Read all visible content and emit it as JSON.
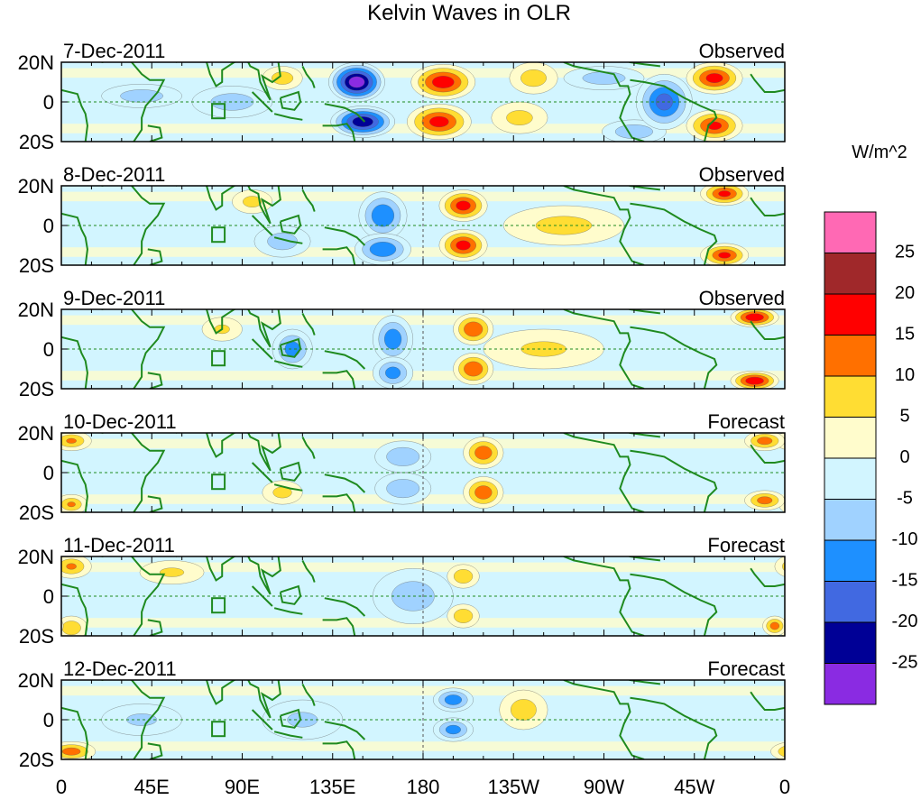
{
  "chart_data": {
    "type": "heatmap",
    "title": "Kelvin Waves in OLR",
    "units_label": "W/m^2",
    "xlim": [
      0,
      360
    ],
    "ylim": [
      -20,
      20
    ],
    "x_ticks": [
      {
        "lon": 0,
        "label": "0"
      },
      {
        "lon": 45,
        "label": "45E"
      },
      {
        "lon": 90,
        "label": "90E"
      },
      {
        "lon": 135,
        "label": "135E"
      },
      {
        "lon": 180,
        "label": "180"
      },
      {
        "lon": 225,
        "label": "135W"
      },
      {
        "lon": 270,
        "label": "90W"
      },
      {
        "lon": 315,
        "label": "45W"
      },
      {
        "lon": 360,
        "label": "0"
      }
    ],
    "y_ticks": [
      {
        "lat": 20,
        "label": "20N"
      },
      {
        "lat": 0,
        "label": "0"
      },
      {
        "lat": -20,
        "label": "20S"
      }
    ],
    "colorbar": {
      "levels": [
        -25,
        -20,
        -15,
        -10,
        -5,
        0,
        5,
        10,
        15,
        20,
        25
      ],
      "labels": [
        "-25",
        "-20",
        "-15",
        "-10",
        "-5",
        "0",
        "5",
        "10",
        "15",
        "20",
        "25"
      ],
      "colors": [
        "#8a2be2",
        "#000096",
        "#4169e1",
        "#1e90ff",
        "#a0d2ff",
        "#d2f5ff",
        "#fffccc",
        "#ffdd33",
        "#ff7000",
        "#ff0000",
        "#a0282a",
        "#ff69b4"
      ]
    },
    "panels": [
      {
        "date": "7-Dec-2011",
        "status": "Observed",
        "anomalies": [
          [
            40,
            3,
            -8,
            20,
            6
          ],
          [
            85,
            0,
            -8,
            20,
            8
          ],
          [
            110,
            12,
            8,
            10,
            6
          ],
          [
            147,
            10,
            -26,
            14,
            10
          ],
          [
            150,
            -10,
            -22,
            16,
            8
          ],
          [
            190,
            10,
            17,
            16,
            9
          ],
          [
            188,
            -10,
            16,
            16,
            9
          ],
          [
            235,
            12,
            8,
            12,
            8
          ],
          [
            228,
            -8,
            7,
            14,
            8
          ],
          [
            270,
            12,
            -8,
            20,
            6
          ],
          [
            285,
            -15,
            -9,
            16,
            6
          ],
          [
            300,
            0,
            -16,
            14,
            14
          ],
          [
            325,
            12,
            16,
            14,
            8
          ],
          [
            325,
            -12,
            15,
            14,
            8
          ]
        ]
      },
      {
        "date": "8-Dec-2011",
        "status": "Observed",
        "anomalies": [
          [
            95,
            12,
            7,
            10,
            6
          ],
          [
            110,
            -8,
            -8,
            14,
            8
          ],
          [
            160,
            5,
            -14,
            12,
            12
          ],
          [
            160,
            -12,
            -14,
            14,
            8
          ],
          [
            200,
            10,
            16,
            12,
            8
          ],
          [
            200,
            -10,
            16,
            12,
            8
          ],
          [
            250,
            0,
            7,
            30,
            10
          ],
          [
            330,
            16,
            15,
            12,
            6
          ],
          [
            330,
            -15,
            15,
            12,
            6
          ]
        ]
      },
      {
        "date": "9-Dec-2011",
        "status": "Observed",
        "anomalies": [
          [
            80,
            10,
            6,
            10,
            6
          ],
          [
            115,
            0,
            -12,
            10,
            10
          ],
          [
            165,
            5,
            -13,
            10,
            12
          ],
          [
            165,
            -12,
            -12,
            10,
            8
          ],
          [
            205,
            10,
            14,
            10,
            8
          ],
          [
            205,
            -10,
            14,
            10,
            8
          ],
          [
            240,
            0,
            6,
            30,
            10
          ],
          [
            345,
            16,
            18,
            12,
            5
          ],
          [
            345,
            -16,
            18,
            12,
            5
          ]
        ]
      },
      {
        "date": "10-Dec-2011",
        "status": "Forecast",
        "anomalies": [
          [
            5,
            16,
            10,
            10,
            5
          ],
          [
            5,
            -16,
            10,
            8,
            5
          ],
          [
            110,
            -10,
            7,
            10,
            6
          ],
          [
            170,
            8,
            -9,
            14,
            8
          ],
          [
            170,
            -8,
            -9,
            14,
            8
          ],
          [
            210,
            10,
            13,
            10,
            8
          ],
          [
            210,
            -10,
            13,
            10,
            8
          ],
          [
            350,
            16,
            12,
            10,
            5
          ],
          [
            350,
            -14,
            12,
            10,
            5
          ]
        ]
      },
      {
        "date": "11-Dec-2011",
        "status": "Forecast",
        "anomalies": [
          [
            5,
            15,
            10,
            10,
            6
          ],
          [
            5,
            -16,
            9,
            8,
            6
          ],
          [
            55,
            12,
            6,
            16,
            6
          ],
          [
            175,
            0,
            -8,
            20,
            14
          ],
          [
            200,
            10,
            9,
            8,
            6
          ],
          [
            200,
            -10,
            9,
            8,
            6
          ],
          [
            355,
            -15,
            12,
            6,
            5
          ]
        ]
      },
      {
        "date": "12-Dec-2011",
        "status": "Forecast",
        "anomalies": [
          [
            5,
            -16,
            12,
            12,
            5
          ],
          [
            40,
            0,
            -6,
            20,
            8
          ],
          [
            120,
            0,
            -6,
            20,
            10
          ],
          [
            195,
            10,
            -13,
            10,
            6
          ],
          [
            195,
            -5,
            -12,
            10,
            6
          ],
          [
            230,
            5,
            8,
            12,
            10
          ]
        ]
      }
    ]
  }
}
